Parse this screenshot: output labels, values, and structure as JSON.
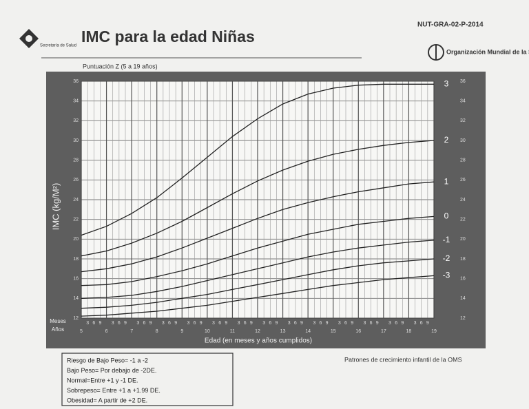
{
  "document_code": "NUT-GRA-02-P-2014",
  "ministry": "Secretaría de Salud",
  "organization": "Organización Mundial de la Salud",
  "source": "Patrones de crecimiento infantil de la OMS",
  "notes": [
    "Riesgo de Bajo Peso= -1 a -2",
    "Bajo Peso= Por debajo de -2DE.",
    "Normal=Entre +1 y -1 DE.",
    "Sobrepeso= Entre +1 a +1.99 DE.",
    "Obesidad= A partir de +2 DE."
  ],
  "chart_data": {
    "type": "line",
    "title": "IMC para la edad Niñas",
    "subtitle": "Puntuación Z (5 a 19 años)",
    "y_label": "IMC (kg/M²)",
    "x_label": "Edad (en meses y años cumplidos)",
    "month_row_label": "Meses",
    "year_row_label": "Años",
    "x": [
      5,
      6,
      7,
      8,
      9,
      10,
      11,
      12,
      13,
      14,
      15,
      16,
      17,
      18,
      19
    ],
    "xlim": [
      5,
      19
    ],
    "xticks": [
      5,
      6,
      7,
      8,
      9,
      10,
      11,
      12,
      13,
      14,
      15,
      16,
      17,
      18,
      19
    ],
    "month_ticks": [
      3,
      6,
      9
    ],
    "ylim": [
      12,
      36
    ],
    "yticks": [
      12,
      14,
      16,
      18,
      20,
      22,
      24,
      26,
      28,
      30,
      32,
      34,
      36
    ],
    "grid": true,
    "series": [
      {
        "name": "3",
        "color": "#222222",
        "values": [
          20.4,
          21.3,
          22.6,
          24.2,
          26.2,
          28.3,
          30.4,
          32.2,
          33.7,
          34.7,
          35.3,
          35.6,
          35.7,
          35.7,
          35.7
        ]
      },
      {
        "name": "2",
        "color": "#222222",
        "values": [
          18.3,
          18.8,
          19.6,
          20.6,
          21.8,
          23.2,
          24.6,
          25.9,
          27.0,
          27.9,
          28.6,
          29.1,
          29.5,
          29.8,
          30.0
        ]
      },
      {
        "name": "1",
        "color": "#222222",
        "values": [
          16.7,
          17.0,
          17.5,
          18.2,
          19.1,
          20.1,
          21.1,
          22.1,
          23.0,
          23.7,
          24.3,
          24.8,
          25.2,
          25.6,
          25.8
        ]
      },
      {
        "name": "0",
        "color": "#222222",
        "values": [
          15.3,
          15.4,
          15.7,
          16.2,
          16.8,
          17.5,
          18.3,
          19.1,
          19.8,
          20.5,
          21.0,
          21.5,
          21.8,
          22.1,
          22.3
        ]
      },
      {
        "name": "-1",
        "color": "#222222",
        "values": [
          14.0,
          14.1,
          14.3,
          14.7,
          15.2,
          15.8,
          16.4,
          17.0,
          17.6,
          18.2,
          18.7,
          19.1,
          19.4,
          19.7,
          19.9
        ]
      },
      {
        "name": "-2",
        "color": "#222222",
        "values": [
          13.0,
          13.1,
          13.3,
          13.6,
          14.0,
          14.4,
          14.9,
          15.4,
          15.9,
          16.4,
          16.9,
          17.3,
          17.6,
          17.8,
          18.0
        ]
      },
      {
        "name": "-3",
        "color": "#222222",
        "values": [
          12.2,
          12.3,
          12.5,
          12.7,
          13.0,
          13.3,
          13.7,
          14.1,
          14.5,
          14.9,
          15.3,
          15.6,
          15.9,
          16.1,
          16.3
        ]
      }
    ]
  }
}
